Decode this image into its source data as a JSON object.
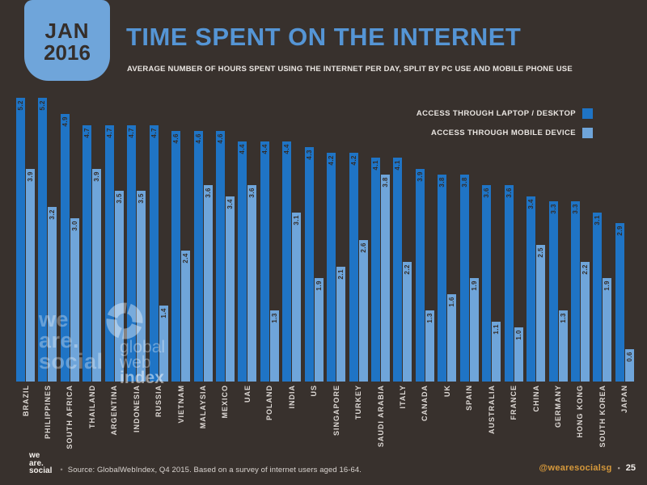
{
  "badge": {
    "month": "JAN",
    "year": "2016"
  },
  "header": {
    "title": "TIME SPENT ON THE INTERNET",
    "subtitle": "AVERAGE NUMBER OF HOURS SPENT USING THE INTERNET PER DAY, SPLIT BY PC USE AND MOBILE PHONE USE"
  },
  "legend": [
    {
      "label": "ACCESS THROUGH LAPTOP / DESKTOP",
      "color": "#1f74c5"
    },
    {
      "label": "ACCESS THROUGH MOBILE DEVICE",
      "color": "#6fa5da"
    }
  ],
  "chart_data": {
    "type": "bar",
    "title": "TIME SPENT ON THE INTERNET",
    "subtitle": "Average number of hours spent using the internet per day, split by PC use and mobile phone use",
    "unit": "hours per day",
    "ylim": [
      0,
      5.5
    ],
    "grid": false,
    "legend_position": "top-right",
    "value_labels": true,
    "categories": [
      "BRAZIL",
      "PHILIPPINES",
      "SOUTH AFRICA",
      "THAILAND",
      "ARGENTINA",
      "INDONESIA",
      "RUSSIA",
      "VIETNAM",
      "MALAYSIA",
      "MEXICO",
      "UAE",
      "POLAND",
      "INDIA",
      "US",
      "SINGAPORE",
      "TURKEY",
      "SAUDI ARABIA",
      "ITALY",
      "CANADA",
      "UK",
      "SPAIN",
      "AUSTRALIA",
      "FRANCE",
      "CHINA",
      "GERMANY",
      "HONG KONG",
      "SOUTH KOREA",
      "JAPAN"
    ],
    "series": [
      {
        "key": "desktop",
        "name": "Access through laptop / desktop",
        "color": "#1f74c5",
        "values": [
          5.2,
          5.2,
          4.9,
          4.7,
          4.7,
          4.7,
          4.7,
          4.6,
          4.6,
          4.6,
          4.4,
          4.4,
          4.4,
          4.3,
          4.2,
          4.2,
          4.1,
          4.1,
          3.9,
          3.8,
          3.8,
          3.6,
          3.6,
          3.4,
          3.3,
          3.3,
          3.1,
          2.9
        ]
      },
      {
        "key": "mobile",
        "name": "Access through mobile device",
        "color": "#6fa5da",
        "values": [
          3.9,
          3.2,
          3.0,
          3.9,
          3.5,
          3.5,
          1.4,
          2.4,
          3.6,
          3.4,
          3.6,
          1.3,
          3.1,
          1.9,
          2.1,
          2.6,
          3.8,
          2.2,
          1.3,
          1.6,
          1.9,
          1.1,
          1.0,
          2.5,
          1.3,
          2.2,
          1.9,
          0.6
        ]
      }
    ]
  },
  "watermarks": {
    "we_are_social": [
      "we",
      "are.",
      "social"
    ],
    "globalwebindex": [
      "global",
      "web",
      "index"
    ]
  },
  "footer": {
    "logo_lines": [
      "we",
      "are.",
      "social"
    ],
    "bullet": "•",
    "source": "Source: GlobalWebIndex, Q4 2015. Based on a survey of internet users aged 16-64.",
    "handle": "@wearesocialsg",
    "separator": "•",
    "page": "25"
  },
  "colors": {
    "background": "#38312d",
    "bar_desktop": "#1f74c5",
    "bar_mobile": "#6fa5da",
    "title": "#5595d5",
    "badge_bg": "#6fa5da",
    "badge_text": "#352e2a",
    "text_light": "#eae6e2",
    "value_label": "#332c28",
    "handle_orange": "#d6993b"
  }
}
